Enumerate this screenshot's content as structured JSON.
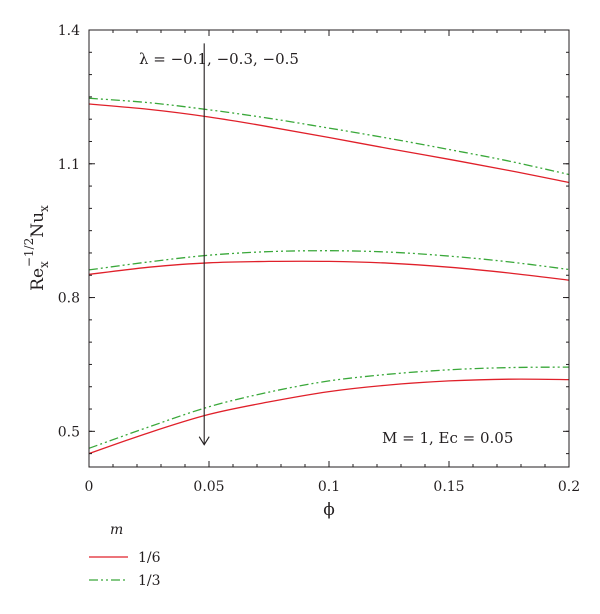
{
  "chart_data": {
    "type": "line",
    "xlabel": "ϕ",
    "ylabel_base": "Re",
    "ylabel_sup": "−1/2",
    "ylabel_sub": "x",
    "ylabel_base2": "Nu",
    "ylabel_sub2": "x",
    "xlim": [
      0,
      0.2
    ],
    "ylim": [
      0.42,
      1.4
    ],
    "x_ticks": [
      0,
      0.05,
      0.1,
      0.15,
      0.2
    ],
    "x_tick_labels": [
      "0",
      "0.05",
      "0.1",
      "0.15",
      "0.2"
    ],
    "y_ticks": [
      0.5,
      0.8,
      1.1,
      1.4
    ],
    "y_tick_labels": [
      "0.5",
      "0.8",
      "1.1",
      "1.4"
    ],
    "annotation_lambda": "λ = −0.1, −0.3, −0.5",
    "annotation_params": "M = 1, Ec = 0.05",
    "arrow": {
      "x": 0.048,
      "y_from": 1.37,
      "y_to": 0.47
    },
    "legend_title": "m",
    "legend_placement": "bottom-left, below plot",
    "series": [
      {
        "name": "1/6",
        "style": "solid",
        "color": "#e0202a",
        "groups": [
          {
            "lambda": "-0.1",
            "x": [
              0,
              0.025,
              0.05,
              0.075,
              0.1,
              0.125,
              0.15,
              0.175,
              0.2
            ],
            "y": [
              1.234,
              1.222,
              1.205,
              1.183,
              1.159,
              1.134,
              1.11,
              1.085,
              1.058
            ]
          },
          {
            "lambda": "-0.3",
            "x": [
              0,
              0.025,
              0.05,
              0.075,
              0.1,
              0.125,
              0.15,
              0.175,
              0.2
            ],
            "y": [
              0.852,
              0.868,
              0.878,
              0.881,
              0.881,
              0.877,
              0.868,
              0.855,
              0.839
            ]
          },
          {
            "lambda": "-0.5",
            "x": [
              0,
              0.025,
              0.05,
              0.075,
              0.1,
              0.125,
              0.15,
              0.175,
              0.2
            ],
            "y": [
              0.45,
              0.497,
              0.538,
              0.566,
              0.589,
              0.604,
              0.613,
              0.617,
              0.616
            ]
          }
        ]
      },
      {
        "name": "1/3",
        "style": "dash-dot-dot",
        "color": "#3aa83a",
        "groups": [
          {
            "lambda": "-0.1",
            "x": [
              0,
              0.025,
              0.05,
              0.075,
              0.1,
              0.125,
              0.15,
              0.175,
              0.2
            ],
            "y": [
              1.247,
              1.237,
              1.221,
              1.202,
              1.18,
              1.157,
              1.132,
              1.106,
              1.076
            ]
          },
          {
            "lambda": "-0.3",
            "x": [
              0,
              0.025,
              0.05,
              0.075,
              0.1,
              0.125,
              0.15,
              0.175,
              0.2
            ],
            "y": [
              0.862,
              0.88,
              0.895,
              0.903,
              0.905,
              0.902,
              0.893,
              0.88,
              0.863
            ]
          },
          {
            "lambda": "-0.5",
            "x": [
              0,
              0.025,
              0.05,
              0.075,
              0.1,
              0.125,
              0.15,
              0.175,
              0.2
            ],
            "y": [
              0.462,
              0.51,
              0.555,
              0.588,
              0.613,
              0.628,
              0.638,
              0.643,
              0.644
            ]
          }
        ]
      }
    ]
  }
}
